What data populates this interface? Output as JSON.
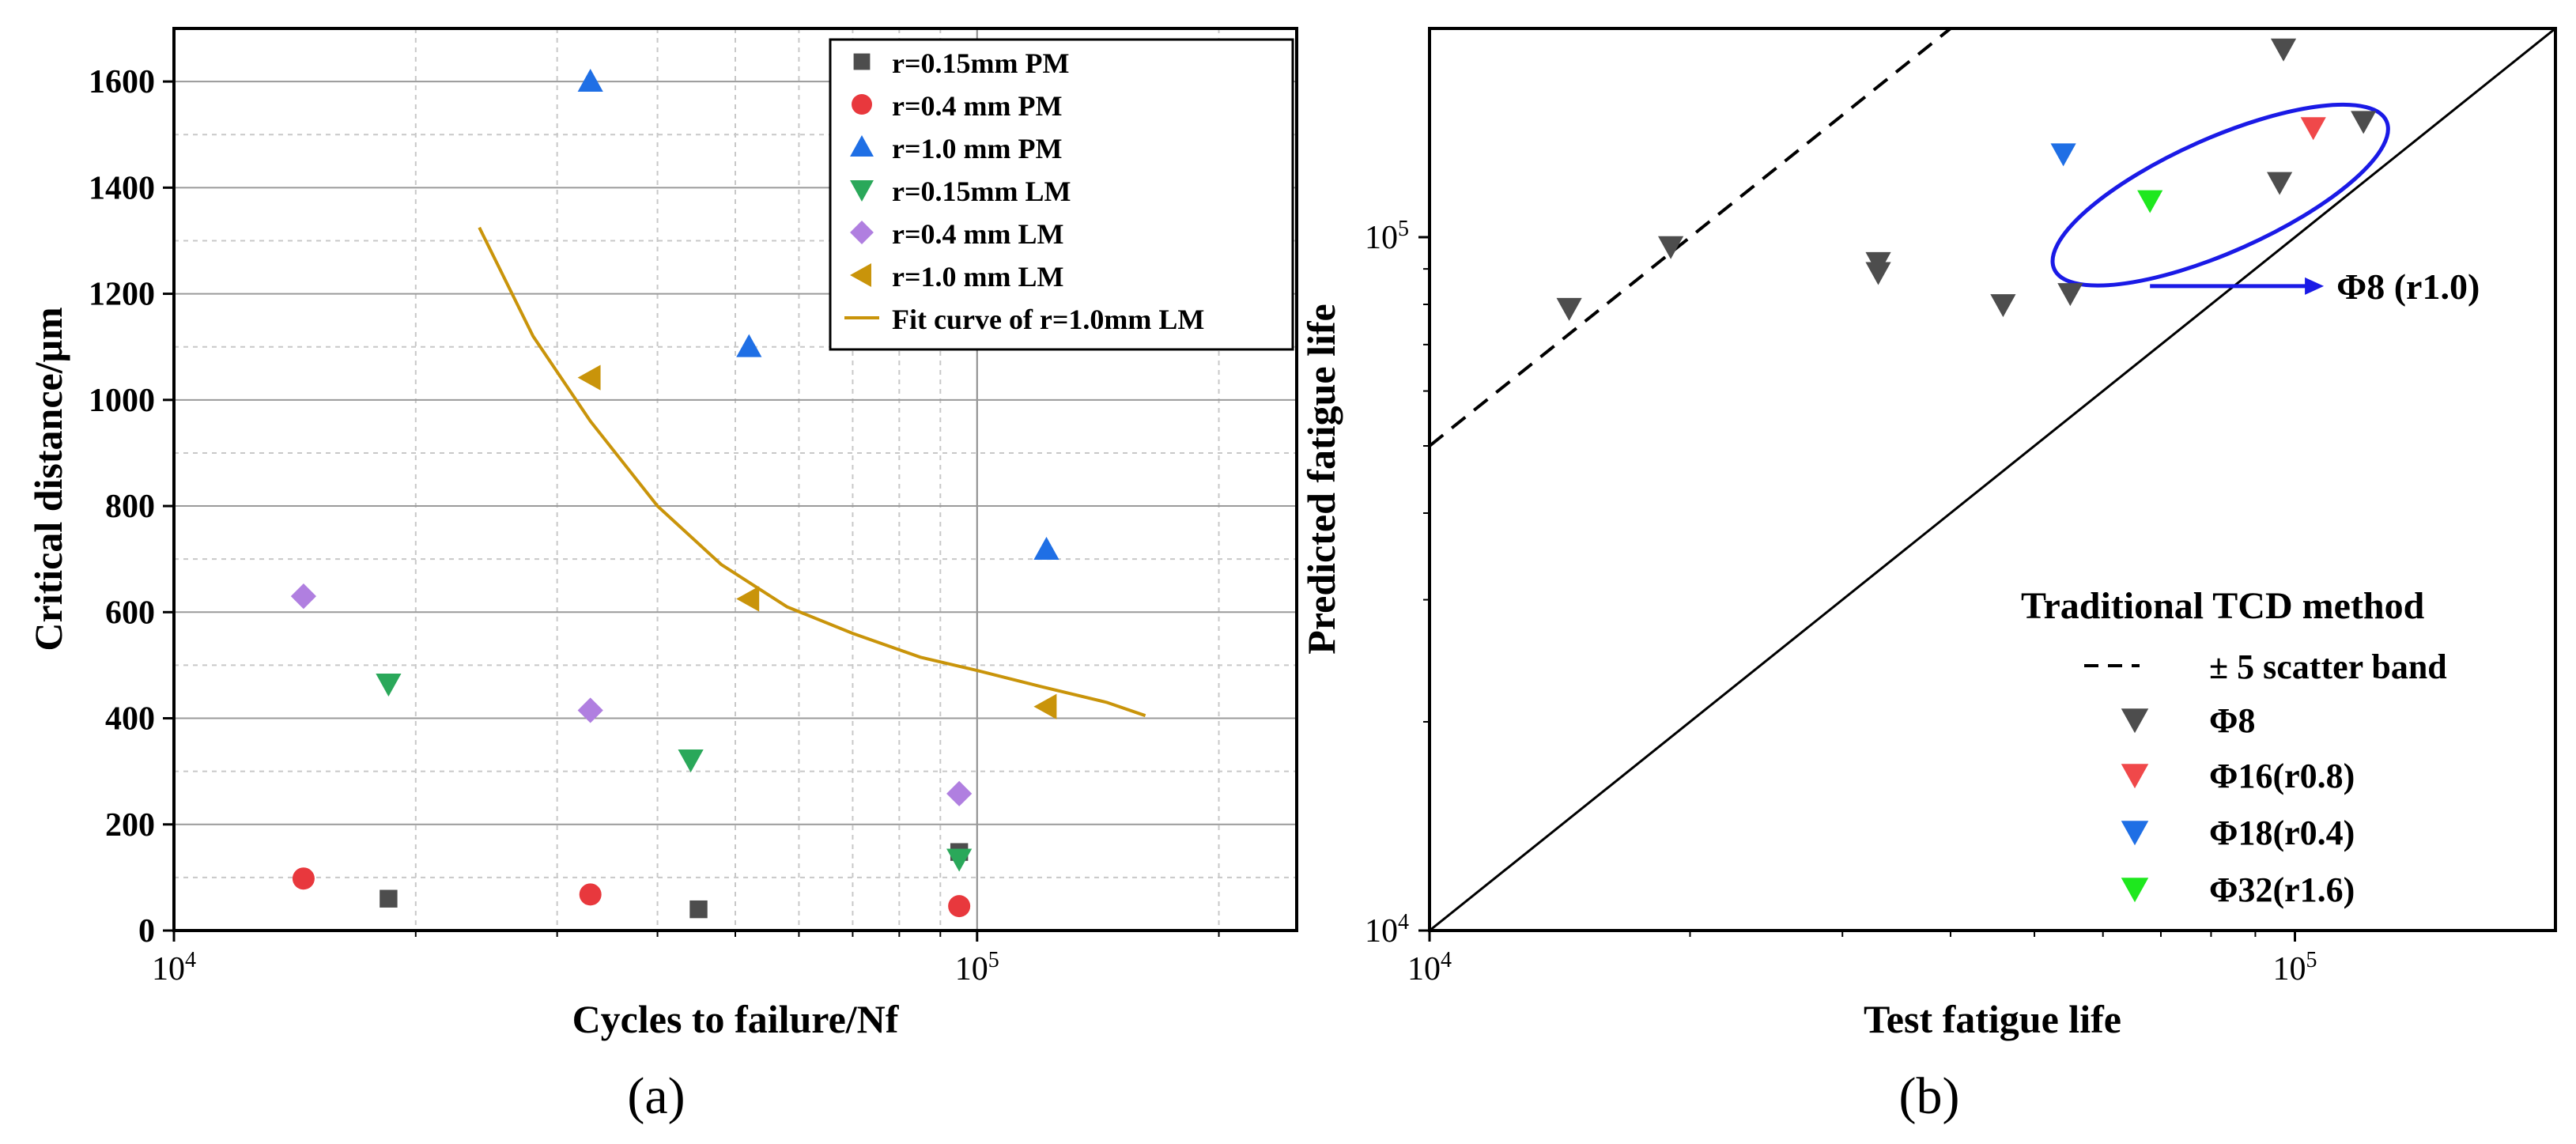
{
  "chart_data": [
    {
      "panel": "(a)",
      "type": "scatter",
      "xscale": "log",
      "xlabel": "Cycles to failure/Nf",
      "ylabel": "Critical distance/μm",
      "xlim": [
        10000,
        250000
      ],
      "ylim": [
        0,
        1700
      ],
      "xticks": [
        {
          "value": 10000,
          "base": "10",
          "exp": "4"
        },
        {
          "value": 100000,
          "base": "10",
          "exp": "5"
        }
      ],
      "yticks": [
        0,
        200,
        400,
        600,
        800,
        1000,
        1200,
        1400,
        1600
      ],
      "grid": true,
      "legend_position": "top-right",
      "series": [
        {
          "name": "r=0.15mm PM",
          "marker": "square",
          "color": "#4d4d4d",
          "points": [
            [
              18500,
              60
            ],
            [
              45000,
              40
            ],
            [
              95000,
              148
            ]
          ]
        },
        {
          "name": "r=0.4  mm PM",
          "marker": "circle",
          "color": "#e8383d",
          "points": [
            [
              14500,
              98
            ],
            [
              33000,
              68
            ],
            [
              95000,
              46
            ]
          ]
        },
        {
          "name": "r=1.0  mm PM",
          "marker": "triangle-up",
          "color": "#1f6fe5",
          "points": [
            [
              33000,
              1600
            ],
            [
              52000,
              1100
            ],
            [
              122000,
              718
            ]
          ]
        },
        {
          "name": "r=0.15mm LM",
          "marker": "triangle-down",
          "color": "#2aa85a",
          "points": [
            [
              18500,
              465
            ],
            [
              44000,
              322
            ],
            [
              95000,
              135
            ]
          ]
        },
        {
          "name": "r=0.4  mm LM",
          "marker": "diamond",
          "color": "#b07fe0",
          "points": [
            [
              14500,
              630
            ],
            [
              33000,
              415
            ],
            [
              95000,
              258
            ]
          ]
        },
        {
          "name": "r=1.0  mm LM",
          "marker": "triangle-left",
          "color": "#c9940a",
          "points": [
            [
              33000,
              1042
            ],
            [
              52000,
              625
            ],
            [
              122000,
              422
            ]
          ]
        }
      ],
      "fit_curve": {
        "name": "Fit curve of r=1.0mm LM",
        "color": "#c9940a",
        "points": [
          [
            24000,
            1325
          ],
          [
            28000,
            1120
          ],
          [
            33000,
            960
          ],
          [
            40000,
            800
          ],
          [
            48000,
            690
          ],
          [
            58000,
            610
          ],
          [
            70000,
            560
          ],
          [
            85000,
            515
          ],
          [
            100000,
            490
          ],
          [
            120000,
            460
          ],
          [
            145000,
            430
          ],
          [
            162000,
            405
          ]
        ]
      }
    },
    {
      "panel": "(b)",
      "type": "scatter",
      "xscale": "log",
      "yscale": "log",
      "xlabel": "Test fatigue life",
      "ylabel": "Predicted fatigue life",
      "xlim": [
        10000,
        200000
      ],
      "ylim": [
        10000,
        200000
      ],
      "xticks": [
        {
          "value": 10000,
          "base": "10",
          "exp": "4"
        },
        {
          "value": 100000,
          "base": "10",
          "exp": "5"
        }
      ],
      "yticks": [
        {
          "value": 10000,
          "base": "10",
          "exp": "4"
        },
        {
          "value": 100000,
          "base": "10",
          "exp": "5"
        }
      ],
      "legend_title": "Traditional TCD method",
      "legend_position": "bottom-right",
      "scatter_band_label": "± 5 scatter band",
      "annotation": "Φ8 (r1.0)",
      "series": [
        {
          "name": "Φ8",
          "marker": "triangle-down",
          "color": "#4d4d4d",
          "points": [
            [
              14500,
              79000
            ],
            [
              19000,
              97000
            ],
            [
              33000,
              89000
            ],
            [
              33000,
              92000
            ],
            [
              46000,
              80000
            ],
            [
              55000,
              83000
            ],
            [
              96000,
              120000
            ],
            [
              97000,
              187000
            ],
            [
              120000,
              147000
            ]
          ]
        },
        {
          "name": "Φ16(r0.8)",
          "marker": "triangle-down",
          "color": "#f0484a",
          "points": [
            [
              105000,
              144000
            ]
          ]
        },
        {
          "name": "Φ18(r0.4)",
          "marker": "triangle-down",
          "color": "#1f6fe5",
          "points": [
            [
              54000,
              132000
            ]
          ]
        },
        {
          "name": "Φ32(r1.6)",
          "marker": "triangle-down",
          "color": "#1ee81e",
          "points": [
            [
              68000,
              113000
            ]
          ]
        }
      ]
    }
  ]
}
